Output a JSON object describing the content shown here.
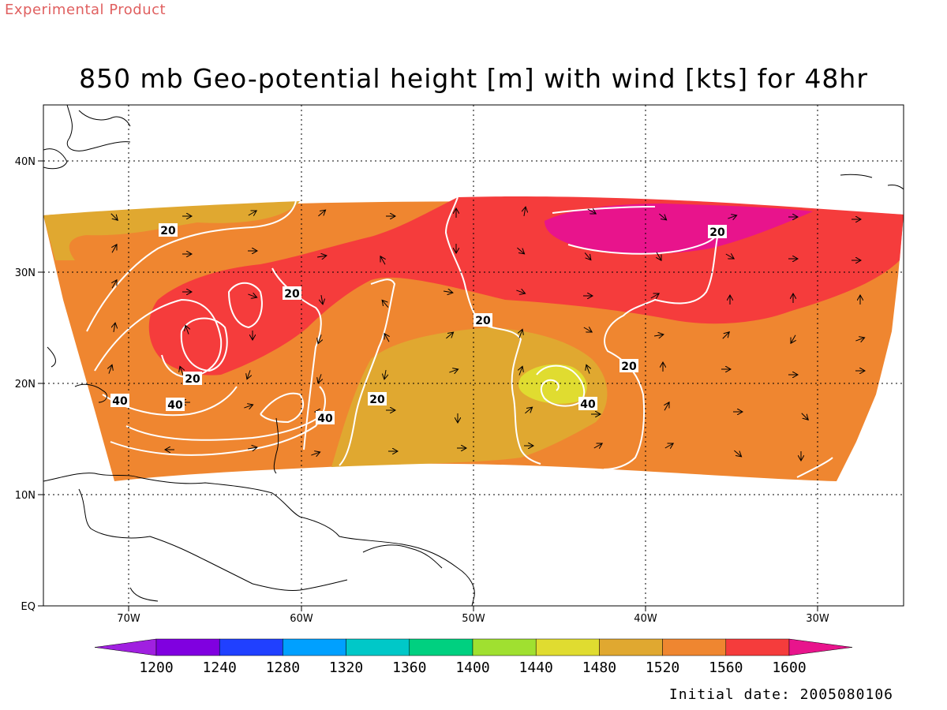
{
  "header": {
    "experimental_label": "Experimental Product",
    "title": "850 mb Geo-potential height [m] with wind [kts] for 48hr",
    "initial_date": "Initial date: 2005080106"
  },
  "map": {
    "lon_labels": [
      "70W",
      "60W",
      "50W",
      "40W",
      "30W"
    ],
    "lat_labels": [
      "EQ",
      "10N",
      "20N",
      "30N",
      "40N"
    ],
    "contour_labels": [
      "20",
      "20",
      "20",
      "20",
      "20",
      "20",
      "20",
      "40",
      "40",
      "40",
      "40"
    ],
    "field_colors": {
      "band_1520": "#e0a830",
      "band_1560": "#ef8630",
      "band_1600": "#f53c3c",
      "band_gt_1600": "#e8148c",
      "band_1480": "#e0dc30"
    }
  },
  "colorbar": {
    "labels": [
      "1200",
      "1240",
      "1280",
      "1320",
      "1360",
      "1400",
      "1440",
      "1480",
      "1520",
      "1560",
      "1600"
    ],
    "colors": [
      "#a020e0",
      "#8000e0",
      "#2040ff",
      "#00a0ff",
      "#00c8c8",
      "#00d080",
      "#a0e030",
      "#e0dc30",
      "#e0a830",
      "#ef8630",
      "#f53c3c",
      "#e8148c"
    ]
  }
}
